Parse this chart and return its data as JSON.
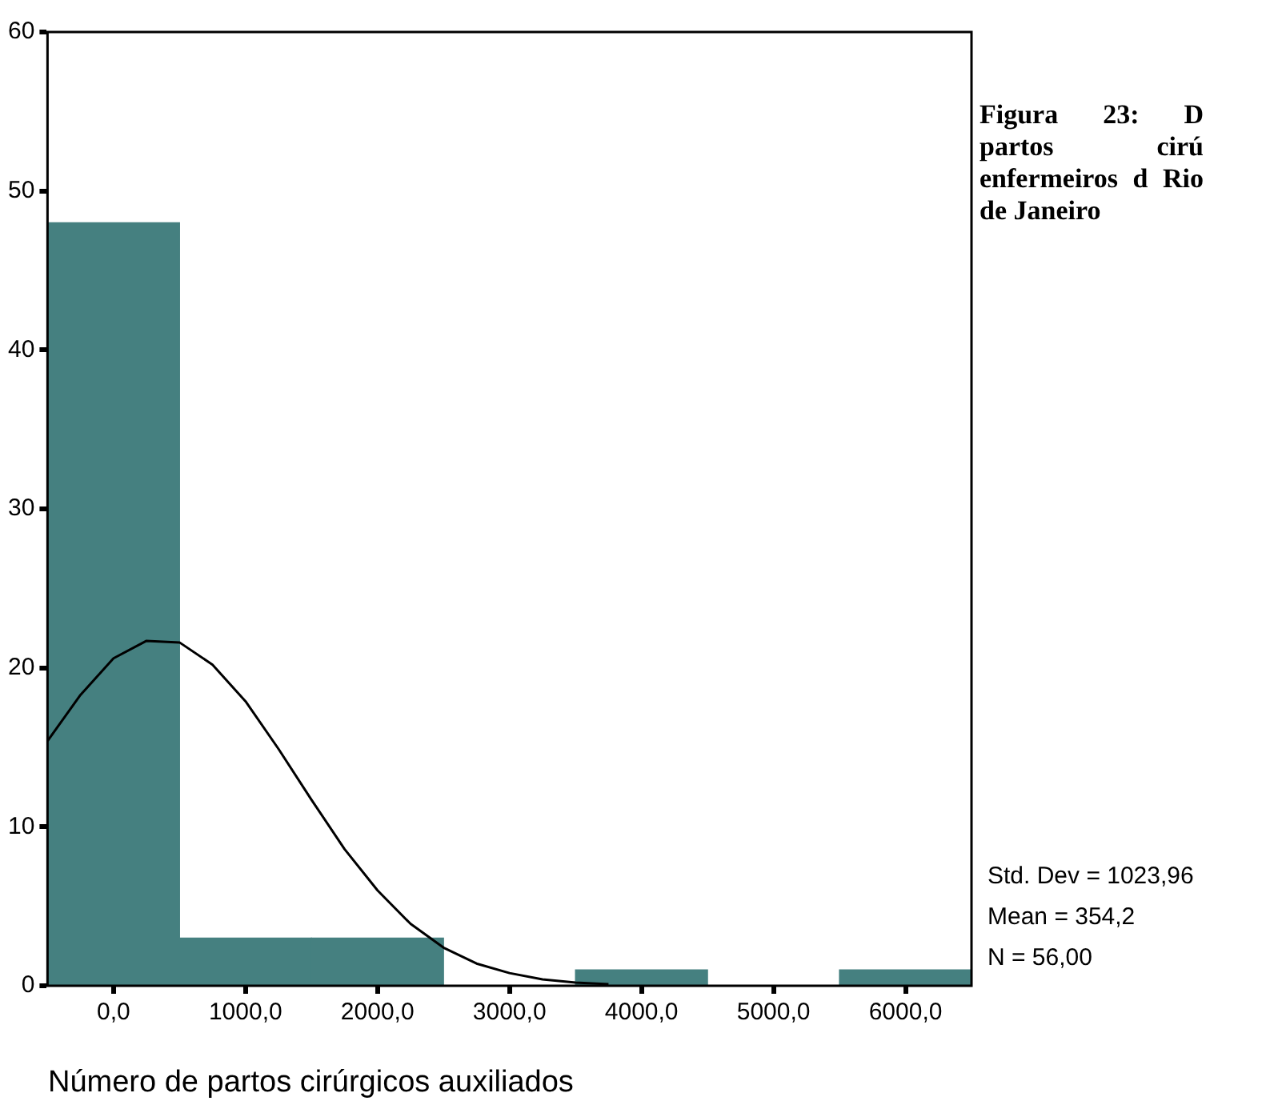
{
  "chart_data": {
    "type": "histogram",
    "title": "Figura 23: D partos cirú enfermeiros d Rio de Janeiro",
    "xlabel": "Número de partos cirúrgicos auxiliados",
    "bins": [
      -500,
      500,
      1500,
      2500,
      3500,
      4500,
      5500,
      6500
    ],
    "values": [
      48,
      3,
      3,
      0,
      1,
      0,
      1
    ],
    "color": "#458080",
    "series": [
      {
        "type": "line",
        "color": "#000000",
        "marker": "none",
        "x": [
          -500,
          -250,
          0,
          250,
          500,
          750,
          1000,
          1250,
          1500,
          1750,
          2000,
          2250,
          2500,
          2750,
          3000,
          3250,
          3500,
          3750
        ],
        "values": [
          15.4,
          18.3,
          20.6,
          21.7,
          21.6,
          20.2,
          17.9,
          14.9,
          11.7,
          8.6,
          6.0,
          3.9,
          2.4,
          1.4,
          0.8,
          0.4,
          0.2,
          0.1
        ]
      }
    ],
    "xlim": [
      -500,
      6500
    ],
    "xticks": [
      {
        "value": 0,
        "label": "0,0"
      },
      {
        "value": 1000,
        "label": "1000,0"
      },
      {
        "value": 2000,
        "label": "2000,0"
      },
      {
        "value": 3000,
        "label": "3000,0"
      },
      {
        "value": 4000,
        "label": "4000,0"
      },
      {
        "value": 5000,
        "label": "5000,0"
      },
      {
        "value": 6000,
        "label": "6000,0"
      }
    ],
    "ylim": [
      0,
      60
    ],
    "yticks": [
      0,
      10,
      20,
      30,
      40,
      50,
      60
    ],
    "annotations": [
      "Std. Dev = 1023,96",
      "Mean = 354,2",
      "N = 56,00"
    ],
    "grid": false,
    "legend": false
  }
}
